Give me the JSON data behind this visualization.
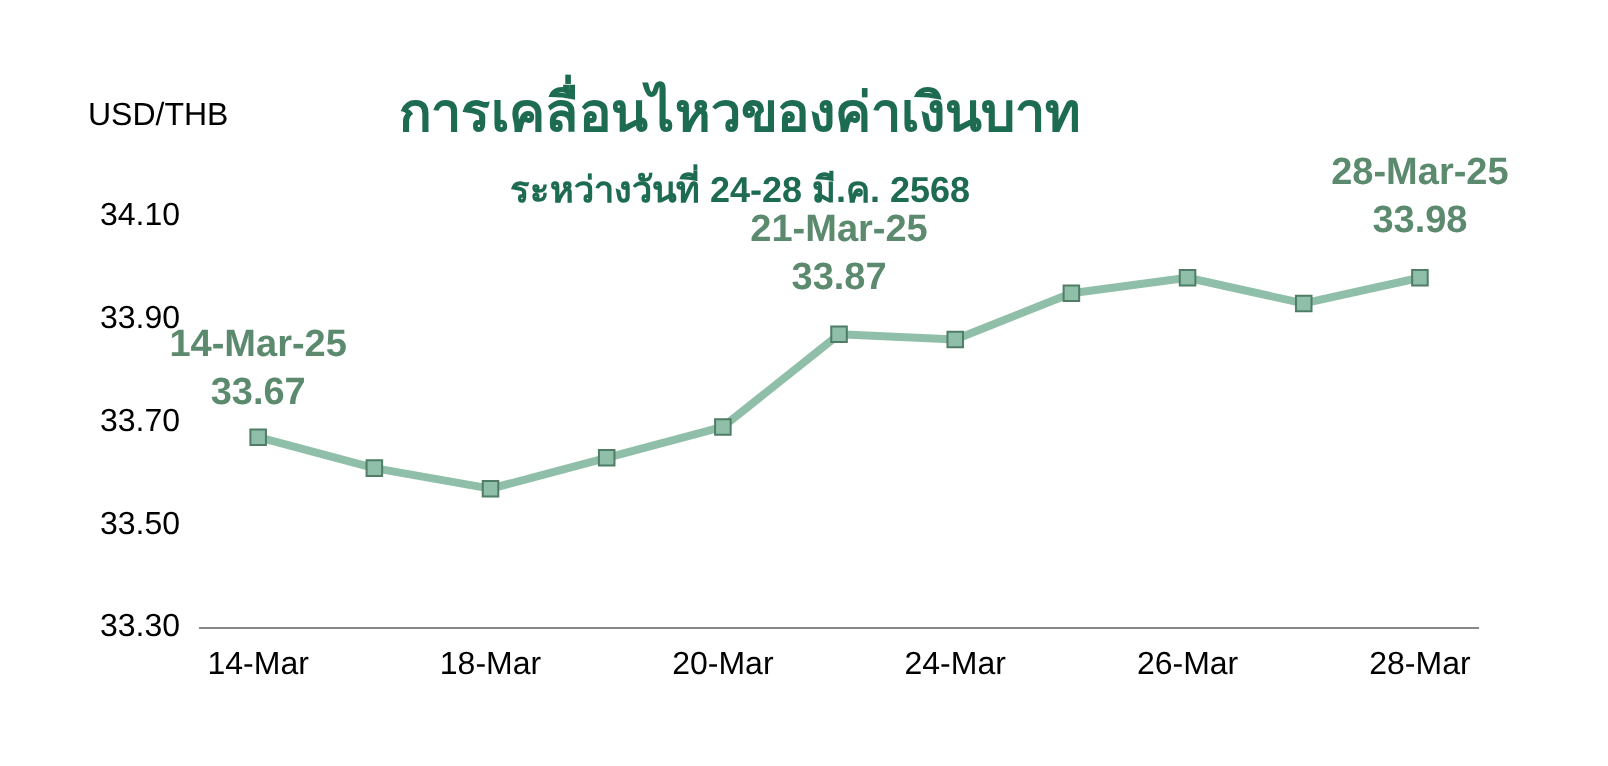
{
  "chart_data": {
    "type": "line",
    "title": "การเคลื่อนไหวของค่าเงินบาท",
    "subtitle": "ระหว่างวันที่ 24-28 มี.ค. 2568",
    "ylabel": "USD/THB",
    "categories": [
      "14-Mar",
      null,
      "18-Mar",
      null,
      "20-Mar",
      null,
      "24-Mar",
      null,
      "26-Mar",
      null,
      "28-Mar"
    ],
    "series": [
      {
        "color": "#8fbfa8",
        "values": [
          33.67,
          33.61,
          33.57,
          33.63,
          33.69,
          33.87,
          33.86,
          33.95,
          33.98,
          33.93,
          33.98
        ],
        "value_labels": [
          "14-Mar-25\n33.67",
          null,
          null,
          null,
          null,
          "21-Mar-25\n33.87",
          null,
          null,
          null,
          null,
          "28-Mar-25\n33.98"
        ]
      }
    ],
    "ylim": [
      33.3,
      34.1
    ],
    "yticks": [
      {
        "value": 33.3,
        "label": "33.30"
      },
      {
        "value": 33.5,
        "label": "33.50"
      },
      {
        "value": 33.7,
        "label": "33.70"
      },
      {
        "value": 33.9,
        "label": "33.90"
      },
      {
        "value": 34.1,
        "label": "34.10"
      }
    ],
    "grid": false,
    "legend": false,
    "marker": "square",
    "line_style": "solid"
  }
}
